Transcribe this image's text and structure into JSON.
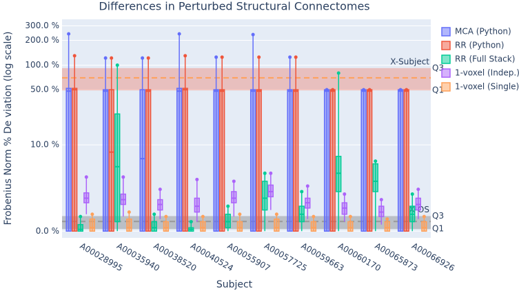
{
  "chart_data": {
    "type": "box",
    "title": "Differences in Perturbed Structural Connectomes",
    "x_label": "Subject",
    "y_label": "Frobenius Norm % De viation (log scale)",
    "log_scale": true,
    "ylim": [
      -0.17,
      360
    ],
    "yticks": [
      {
        "value": 0,
        "label": "0.0 %"
      },
      {
        "value": 10,
        "label": "10.0 %"
      },
      {
        "value": 50,
        "label": "50.0 %"
      },
      {
        "value": 100,
        "label": "100.0 %"
      },
      {
        "value": 200,
        "label": "200.0 %"
      },
      {
        "value": 300,
        "label": "300.0 %"
      }
    ],
    "grid": true,
    "legend": "right",
    "categories": [
      "A00028995",
      "A00035940",
      "A00038520",
      "A00040524",
      "A00055907",
      "A00057725",
      "A00059663",
      "A00060170",
      "A00065873",
      "A00066926"
    ],
    "series": [
      {
        "name": "MCA (Python)",
        "color": "#636efa",
        "boxes": [
          {
            "min": 0,
            "q1": 0,
            "median": 48,
            "q3": 52,
            "max": 240
          },
          {
            "min": 0,
            "q1": 0,
            "median": 48,
            "q3": 50,
            "max": 122
          },
          {
            "min": 0,
            "q1": 0,
            "median": 6.5,
            "q3": 50,
            "max": 122
          },
          {
            "min": 0,
            "q1": 0,
            "median": 48,
            "q3": 52,
            "max": 240
          },
          {
            "min": 0,
            "q1": 0,
            "median": 48,
            "q3": 50,
            "max": 125
          },
          {
            "min": 0,
            "q1": 0,
            "median": 48,
            "q3": 50,
            "max": 235
          },
          {
            "min": 0,
            "q1": 0,
            "median": 48,
            "q3": 50,
            "max": 125
          },
          {
            "min": 0,
            "q1": 0,
            "median": 48,
            "q3": 50,
            "max": 50
          },
          {
            "min": 0,
            "q1": 0,
            "median": 48,
            "q3": 50,
            "max": 50
          },
          {
            "min": 0,
            "q1": 0,
            "median": 48,
            "q3": 50,
            "max": 50
          }
        ]
      },
      {
        "name": "RR (Python)",
        "color": "#ef553b",
        "boxes": [
          {
            "min": 0,
            "q1": 0,
            "median": 50,
            "q3": 52,
            "max": 130
          },
          {
            "min": 0,
            "q1": 0,
            "median": 8,
            "q3": 50,
            "max": 122
          },
          {
            "min": 0,
            "q1": 0,
            "median": 48,
            "q3": 50,
            "max": 122
          },
          {
            "min": 0,
            "q1": 0,
            "median": 50,
            "q3": 52,
            "max": 130
          },
          {
            "min": 0,
            "q1": 0,
            "median": 48,
            "q3": 50,
            "max": 125
          },
          {
            "min": 0,
            "q1": 0,
            "median": 48,
            "q3": 50,
            "max": 125
          },
          {
            "min": 0,
            "q1": 0,
            "median": 48,
            "q3": 50,
            "max": 125
          },
          {
            "min": 0,
            "q1": 0,
            "median": 48,
            "q3": 50,
            "max": 50
          },
          {
            "min": 0,
            "q1": 0,
            "median": 48,
            "q3": 50,
            "max": 50
          },
          {
            "min": 0,
            "q1": 0,
            "median": 48,
            "q3": 50,
            "max": 50
          }
        ]
      },
      {
        "name": "RR (Full Stack)",
        "color": "#00cc96",
        "boxes": [
          {
            "min": 0,
            "q1": 0,
            "median": 0.05,
            "q3": 0.2,
            "max": 0.5
          },
          {
            "min": 0,
            "q1": 0.3,
            "median": 5,
            "q3": 25,
            "max": 100
          },
          {
            "min": 0,
            "q1": 0,
            "median": 0.1,
            "q3": 0.3,
            "max": 0.6
          },
          {
            "min": 0,
            "q1": 0,
            "median": 0.05,
            "q3": 0.1,
            "max": 0.3
          },
          {
            "min": 0,
            "q1": 0.1,
            "median": 0.3,
            "q3": 0.6,
            "max": 1
          },
          {
            "min": 0,
            "q1": 0.8,
            "median": 1.5,
            "q3": 3,
            "max": 4
          },
          {
            "min": 0,
            "q1": 0.3,
            "median": 0.6,
            "q3": 1,
            "max": 2
          },
          {
            "min": 0,
            "q1": 2,
            "median": 4,
            "q3": 7,
            "max": 80
          },
          {
            "min": 0,
            "q1": 2,
            "median": 3,
            "q3": 5.5,
            "max": 6
          },
          {
            "min": 0,
            "q1": 0.3,
            "median": 0.6,
            "q3": 1,
            "max": 1.8
          }
        ]
      },
      {
        "name": "1-voxel (Indep.)",
        "color": "#ab63fa",
        "boxes": [
          {
            "min": 0.6,
            "q1": 1.2,
            "median": 1.5,
            "q3": 1.9,
            "max": 3.5
          },
          {
            "min": 0.5,
            "q1": 1.1,
            "median": 1.4,
            "q3": 1.8,
            "max": 3.5
          },
          {
            "min": 0.4,
            "q1": 0.8,
            "median": 1.1,
            "q3": 1.4,
            "max": 2.2
          },
          {
            "min": 0.3,
            "q1": 0.7,
            "median": 1,
            "q3": 1.5,
            "max": 3.2
          },
          {
            "min": 0.5,
            "q1": 1.2,
            "median": 1.5,
            "q3": 2,
            "max": 3
          },
          {
            "min": 0.8,
            "q1": 1.6,
            "median": 2,
            "q3": 2.6,
            "max": 4
          },
          {
            "min": 0.4,
            "q1": 0.9,
            "median": 1.2,
            "q3": 1.5,
            "max": 2.5
          },
          {
            "min": 0.3,
            "q1": 0.6,
            "median": 0.9,
            "q3": 1.2,
            "max": 1.8
          },
          {
            "min": 0.2,
            "q1": 0.5,
            "median": 0.7,
            "q3": 1,
            "max": 1.4
          },
          {
            "min": 0.4,
            "q1": 0.8,
            "median": 1.1,
            "q3": 1.5,
            "max": 2.2
          }
        ]
      },
      {
        "name": "1-voxel (Single)",
        "color": "#ffa15a",
        "boxes": [
          {
            "min": 0,
            "q1": 0,
            "median": 0.1,
            "q3": 0.4,
            "max": 0.6
          },
          {
            "min": 0,
            "q1": 0,
            "median": 0.1,
            "q3": 0.4,
            "max": 0.7
          },
          {
            "min": 0,
            "q1": 0,
            "median": 0.1,
            "q3": 0.3,
            "max": 0.5
          },
          {
            "min": 0,
            "q1": 0,
            "median": 0.1,
            "q3": 0.3,
            "max": 0.5
          },
          {
            "min": 0,
            "q1": 0,
            "median": 0.1,
            "q3": 0.3,
            "max": 0.6
          },
          {
            "min": 0,
            "q1": 0,
            "median": 0.1,
            "q3": 0.4,
            "max": 0.6
          },
          {
            "min": 0,
            "q1": 0,
            "median": 0.1,
            "q3": 0.3,
            "max": 0.5
          },
          {
            "min": 0,
            "q1": 0,
            "median": 0.1,
            "q3": 0.3,
            "max": 0.5
          },
          {
            "min": 0,
            "q1": 0,
            "median": 0.1,
            "q3": 0.3,
            "max": 0.4
          },
          {
            "min": 0,
            "q1": 0,
            "median": 0.1,
            "q3": 0.3,
            "max": 0.5
          }
        ]
      }
    ],
    "bands": [
      {
        "label": "X-Subject",
        "q1_label": "Q1",
        "q3_label": "Q3",
        "q1": 49,
        "median": 70,
        "q3": 92,
        "fill": "#ef553b",
        "line": "#ffa15a"
      },
      {
        "label": "X-OS",
        "q1_label": "Q1",
        "q3_label": "Q3",
        "q1": 0.06,
        "median": 0.31,
        "q3": 0.52,
        "fill": "#555555",
        "line": "#999999"
      }
    ]
  }
}
